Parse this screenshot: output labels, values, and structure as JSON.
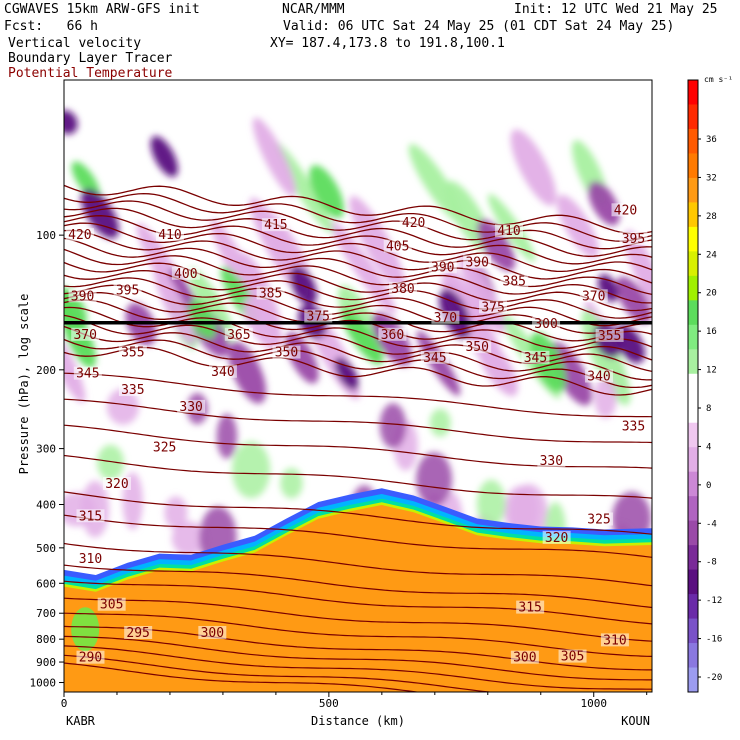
{
  "header": {
    "line1_left": "CGWAVES 15km ARW-GFS init",
    "line1_mid": "NCAR/MMM",
    "line1_right": "Init: 12 UTC Wed 21 May 25",
    "line2_left": "Fcst:   66 h",
    "line2_right": "Valid: 06 UTC Sat 24 May 25 (01 CDT Sat 24 May 25)",
    "line3_left": "Vertical velocity",
    "line3_right": "XY= 187.4,173.8 to 191.8,100.1",
    "line4_left": "Boundary Layer Tracer",
    "line5_left": "Potential Temperature"
  },
  "colors": {
    "theta_contour": "#7a0000",
    "title_theta": "#8b0000",
    "tropopause_line": "#000000",
    "green": "#5cdc5c",
    "light_green": "#a8f0a0",
    "lavender": "#e2aee6",
    "purple": "#9a4aa8",
    "dark_purple": "#5a0f80",
    "tracer_orange": "#ff9a14"
  },
  "chart_data": {
    "type": "cross-section",
    "xlabel": "Distance (km)",
    "ylabel": "Pressure (hPa), log scale",
    "xlim": [
      0,
      1110
    ],
    "x_ticks": [
      0,
      500,
      1000
    ],
    "y_ticks": [
      100,
      200,
      300,
      400,
      500,
      600,
      700,
      800,
      900,
      1000
    ],
    "y_scale": "log",
    "endpoints": {
      "left": "KABR",
      "right": "KOUN"
    },
    "colorbar": {
      "unit": "cm s⁻¹",
      "labels": [
        36,
        32,
        28,
        24,
        20,
        16,
        12,
        8,
        4,
        0,
        -4,
        -8,
        -12,
        -16,
        -20
      ],
      "colors": [
        "#ff0000",
        "#ff2a00",
        "#ff5a00",
        "#ff7a00",
        "#ff9a14",
        "#ffc800",
        "#ffff00",
        "#d8f000",
        "#a0f000",
        "#5cdc5c",
        "#80ec80",
        "#a8f0a0",
        "#ffffff",
        "#ffffff",
        "#f0c8f0",
        "#e2aee6",
        "#cc88d6",
        "#b064c0",
        "#9a4aa8",
        "#7a2a98",
        "#5a0f80",
        "#6a2aa8",
        "#7a52c8",
        "#8a78e0",
        "#9c9cf0"
      ]
    },
    "theta_labels": [
      {
        "x": 30,
        "p": 100,
        "v": "420"
      },
      {
        "x": 200,
        "p": 100,
        "v": "410"
      },
      {
        "x": 400,
        "p": 95,
        "v": "415"
      },
      {
        "x": 660,
        "p": 94,
        "v": "420"
      },
      {
        "x": 840,
        "p": 98,
        "v": "410"
      },
      {
        "x": 1060,
        "p": 88,
        "v": "420"
      },
      {
        "x": 1075,
        "p": 102,
        "v": "395"
      },
      {
        "x": 35,
        "p": 137,
        "v": "390"
      },
      {
        "x": 120,
        "p": 133,
        "v": "395"
      },
      {
        "x": 230,
        "p": 122,
        "v": "400"
      },
      {
        "x": 390,
        "p": 135,
        "v": "385"
      },
      {
        "x": 630,
        "p": 106,
        "v": "405"
      },
      {
        "x": 715,
        "p": 118,
        "v": "390"
      },
      {
        "x": 780,
        "p": 115,
        "v": "390"
      },
      {
        "x": 850,
        "p": 127,
        "v": "385"
      },
      {
        "x": 1000,
        "p": 137,
        "v": "370"
      },
      {
        "x": 640,
        "p": 132,
        "v": "380"
      },
      {
        "x": 480,
        "p": 152,
        "v": "375"
      },
      {
        "x": 720,
        "p": 153,
        "v": "370"
      },
      {
        "x": 810,
        "p": 145,
        "v": "375"
      },
      {
        "x": 910,
        "p": 158,
        "v": "300"
      },
      {
        "x": 40,
        "p": 167,
        "v": "370"
      },
      {
        "x": 330,
        "p": 167,
        "v": "365"
      },
      {
        "x": 620,
        "p": 167,
        "v": "360"
      },
      {
        "x": 1030,
        "p": 168,
        "v": "355"
      },
      {
        "x": 130,
        "p": 183,
        "v": "355"
      },
      {
        "x": 420,
        "p": 183,
        "v": "350"
      },
      {
        "x": 780,
        "p": 178,
        "v": "350"
      },
      {
        "x": 700,
        "p": 188,
        "v": "345"
      },
      {
        "x": 890,
        "p": 188,
        "v": "345"
      },
      {
        "x": 45,
        "p": 204,
        "v": "345"
      },
      {
        "x": 300,
        "p": 202,
        "v": "340"
      },
      {
        "x": 1010,
        "p": 207,
        "v": "340"
      },
      {
        "x": 130,
        "p": 222,
        "v": "335"
      },
      {
        "x": 240,
        "p": 242,
        "v": "330"
      },
      {
        "x": 1075,
        "p": 268,
        "v": "335"
      },
      {
        "x": 190,
        "p": 298,
        "v": "325"
      },
      {
        "x": 920,
        "p": 320,
        "v": "330"
      },
      {
        "x": 100,
        "p": 360,
        "v": "320"
      },
      {
        "x": 50,
        "p": 425,
        "v": "315"
      },
      {
        "x": 1010,
        "p": 432,
        "v": "325"
      },
      {
        "x": 930,
        "p": 475,
        "v": "320"
      },
      {
        "x": 50,
        "p": 530,
        "v": "310"
      },
      {
        "x": 90,
        "p": 670,
        "v": "305"
      },
      {
        "x": 880,
        "p": 680,
        "v": "315"
      },
      {
        "x": 140,
        "p": 775,
        "v": "295"
      },
      {
        "x": 280,
        "p": 775,
        "v": "300"
      },
      {
        "x": 1040,
        "p": 805,
        "v": "310"
      },
      {
        "x": 50,
        "p": 880,
        "v": "290"
      },
      {
        "x": 870,
        "p": 880,
        "v": "300"
      },
      {
        "x": 960,
        "p": 875,
        "v": "305"
      }
    ],
    "tracer_top_p": [
      [
        0,
        560
      ],
      [
        60,
        575
      ],
      [
        120,
        540
      ],
      [
        180,
        515
      ],
      [
        240,
        518
      ],
      [
        300,
        492
      ],
      [
        360,
        470
      ],
      [
        420,
        430
      ],
      [
        480,
        395
      ],
      [
        540,
        380
      ],
      [
        600,
        368
      ],
      [
        660,
        382
      ],
      [
        720,
        405
      ],
      [
        780,
        430
      ],
      [
        840,
        440
      ],
      [
        900,
        448
      ],
      [
        960,
        450
      ],
      [
        1020,
        455
      ],
      [
        1110,
        452
      ]
    ]
  }
}
